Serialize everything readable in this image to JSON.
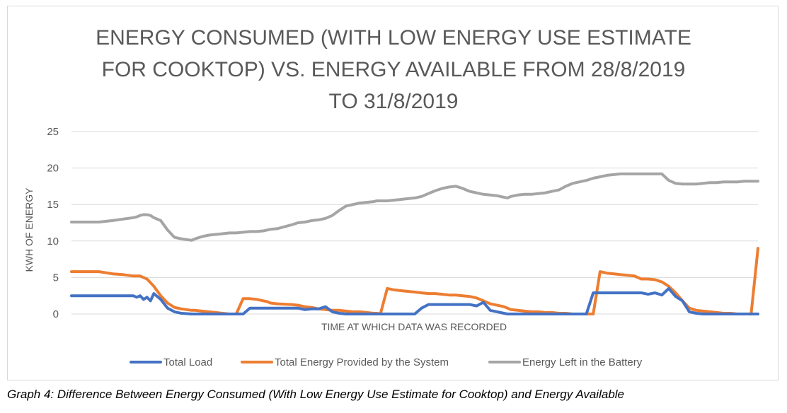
{
  "caption": "Graph 4: Difference Between Energy Consumed (With Low Energy Use Estimate for Cooktop) and Energy Available",
  "chart_data": {
    "type": "line",
    "title_lines": [
      "ENERGY CONSUMED (WITH LOW ENERGY USE ESTIMATE",
      "FOR COOKTOP) VS. ENERGY AVAILABLE FROM 28/8/2019",
      "TO 31/8/2019"
    ],
    "xlabel": "TIME AT WHICH DATA WAS RECORDED",
    "ylabel": "KWH OF ENERGY",
    "ylim": [
      0,
      25
    ],
    "yticks": [
      "0",
      "5",
      "10",
      "15",
      "20",
      "25"
    ],
    "grid": true,
    "legend_position": "bottom",
    "x_index": [
      0,
      40,
      60,
      75,
      90,
      95,
      100,
      105,
      110,
      115,
      120,
      130,
      140,
      150,
      160,
      175,
      180,
      190,
      200,
      210,
      220,
      230,
      240,
      250,
      260,
      270,
      280,
      285,
      290,
      300,
      320,
      330,
      340,
      350,
      360,
      370,
      380,
      390,
      400,
      410,
      420,
      430,
      440,
      445,
      450,
      460,
      470,
      480,
      490,
      500,
      510,
      520,
      530,
      540,
      550,
      560,
      570,
      580,
      590,
      600,
      610,
      620,
      630,
      635,
      640,
      650,
      660,
      670,
      680,
      690,
      700,
      710,
      720,
      730,
      740,
      750,
      760,
      770,
      780,
      790,
      800,
      810,
      820,
      825,
      830,
      840,
      850,
      860,
      870,
      880,
      890,
      900,
      910,
      920,
      930,
      940,
      950,
      960,
      970,
      980,
      990,
      1000
    ],
    "series": [
      {
        "name": "Total Load",
        "color": "#4472c4",
        "values": [
          2.5,
          2.5,
          2.5,
          2.5,
          2.5,
          2.3,
          2.5,
          2.0,
          2.3,
          1.8,
          2.8,
          2.0,
          0.8,
          0.3,
          0.1,
          0.0,
          0.0,
          0.0,
          0.0,
          0.0,
          0.0,
          0.0,
          0.0,
          0.0,
          0.8,
          0.8,
          0.8,
          0.8,
          0.8,
          0.8,
          0.8,
          0.8,
          0.6,
          0.7,
          0.7,
          1.0,
          0.3,
          0.1,
          0.0,
          0.0,
          0.0,
          0.0,
          0.0,
          0.0,
          0.0,
          0.0,
          0.0,
          0.0,
          0.0,
          0.0,
          0.8,
          1.3,
          1.3,
          1.3,
          1.3,
          1.3,
          1.3,
          1.3,
          1.1,
          1.6,
          0.5,
          0.3,
          0.1,
          0.0,
          0.0,
          0.0,
          0.0,
          0.0,
          0.0,
          0.0,
          0.0,
          0.0,
          0.0,
          0.0,
          0.0,
          0.0,
          2.9,
          2.9,
          2.9,
          2.9,
          2.9,
          2.9,
          2.9,
          2.9,
          2.9,
          2.7,
          2.9,
          2.6,
          3.5,
          2.4,
          1.8,
          0.3,
          0.1,
          0.0,
          0.0,
          0.0,
          0.0,
          0.0,
          0.0,
          0.0,
          0.0,
          0.0
        ]
      },
      {
        "name": "Total Energy Provided by the System",
        "color": "#ed7d31",
        "values": [
          5.8,
          5.8,
          5.5,
          5.4,
          5.2,
          5.2,
          5.2,
          5.0,
          4.8,
          4.3,
          3.8,
          2.5,
          1.5,
          0.9,
          0.7,
          0.5,
          0.5,
          0.4,
          0.3,
          0.2,
          0.1,
          0.0,
          0.0,
          2.1,
          2.1,
          2.0,
          1.8,
          1.7,
          1.5,
          1.4,
          1.3,
          1.2,
          1.0,
          0.9,
          0.7,
          0.6,
          0.5,
          0.5,
          0.4,
          0.3,
          0.3,
          0.2,
          0.1,
          0.1,
          0.0,
          3.5,
          3.3,
          3.2,
          3.1,
          3.0,
          2.9,
          2.8,
          2.8,
          2.7,
          2.6,
          2.6,
          2.5,
          2.4,
          2.2,
          1.8,
          1.4,
          1.2,
          1.0,
          0.8,
          0.6,
          0.5,
          0.4,
          0.3,
          0.3,
          0.2,
          0.2,
          0.1,
          0.1,
          0.0,
          0.0,
          0.0,
          0.0,
          5.8,
          5.6,
          5.5,
          5.4,
          5.3,
          5.2,
          5.0,
          4.8,
          4.8,
          4.7,
          4.4,
          3.8,
          2.9,
          1.8,
          0.8,
          0.5,
          0.4,
          0.3,
          0.2,
          0.1,
          0.1,
          0.0,
          0.0,
          0.0,
          9.0
        ]
      },
      {
        "name": "Energy Left in the Battery",
        "color": "#a5a5a5",
        "values": [
          12.6,
          12.6,
          12.8,
          13.0,
          13.2,
          13.3,
          13.5,
          13.6,
          13.6,
          13.5,
          13.2,
          12.8,
          11.5,
          10.5,
          10.3,
          10.1,
          10.3,
          10.6,
          10.8,
          10.9,
          11.0,
          11.1,
          11.1,
          11.2,
          11.3,
          11.3,
          11.4,
          11.5,
          11.6,
          11.7,
          12.2,
          12.5,
          12.6,
          12.8,
          12.9,
          13.1,
          13.5,
          14.2,
          14.8,
          15.0,
          15.2,
          15.3,
          15.4,
          15.5,
          15.5,
          15.5,
          15.6,
          15.7,
          15.8,
          15.9,
          16.1,
          16.5,
          16.9,
          17.2,
          17.4,
          17.5,
          17.2,
          16.8,
          16.6,
          16.4,
          16.3,
          16.2,
          16.0,
          15.9,
          16.1,
          16.3,
          16.4,
          16.4,
          16.5,
          16.6,
          16.8,
          17.0,
          17.5,
          17.9,
          18.1,
          18.3,
          18.6,
          18.8,
          19.0,
          19.1,
          19.2,
          19.2,
          19.2,
          19.2,
          19.2,
          19.2,
          19.2,
          19.2,
          18.3,
          17.9,
          17.8,
          17.8,
          17.8,
          17.9,
          18.0,
          18.0,
          18.1,
          18.1,
          18.1,
          18.2,
          18.2,
          18.2
        ]
      }
    ]
  }
}
